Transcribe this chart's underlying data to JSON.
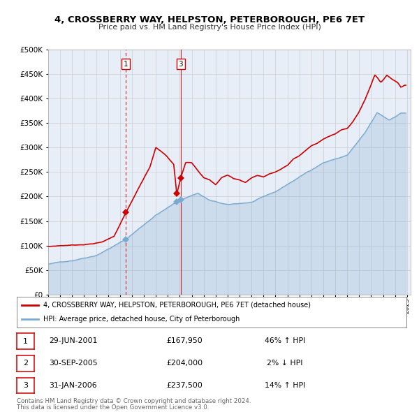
{
  "title": "4, CROSSBERRY WAY, HELPSTON, PETERBOROUGH, PE6 7ET",
  "subtitle": "Price paid vs. HM Land Registry's House Price Index (HPI)",
  "red_legend": "4, CROSSBERRY WAY, HELPSTON, PETERBOROUGH, PE6 7ET (detached house)",
  "blue_legend": "HPI: Average price, detached house, City of Peterborough",
  "footer1": "Contains HM Land Registry data © Crown copyright and database right 2024.",
  "footer2": "This data is licensed under the Open Government Licence v3.0.",
  "transactions": [
    {
      "num": 1,
      "date": "29-JUN-2001",
      "price": 167950,
      "price_str": "£167,950",
      "pct": "46%",
      "dir": "↑",
      "year_x": 2001.49,
      "vline_style": "dashed"
    },
    {
      "num": 2,
      "date": "30-SEP-2005",
      "price": 204000,
      "price_str": "£204,000",
      "pct": "2%",
      "dir": "↓",
      "year_x": 2005.75,
      "vline_style": "none"
    },
    {
      "num": 3,
      "date": "31-JAN-2006",
      "price": 237500,
      "price_str": "£237,500",
      "pct": "14%",
      "dir": "↑",
      "year_x": 2006.08,
      "vline_style": "solid"
    }
  ],
  "vline_color": "#cc0000",
  "red_color": "#cc0000",
  "blue_color": "#7aaad0",
  "bg_color": "#ffffff",
  "grid_color": "#cccccc",
  "plot_bg": "#e8eef8",
  "ylim": [
    0,
    500000
  ],
  "yticks": [
    0,
    50000,
    100000,
    150000,
    200000,
    250000,
    300000,
    350000,
    400000,
    450000,
    500000
  ],
  "xlim_start": 1995.0,
  "xlim_end": 2025.3
}
